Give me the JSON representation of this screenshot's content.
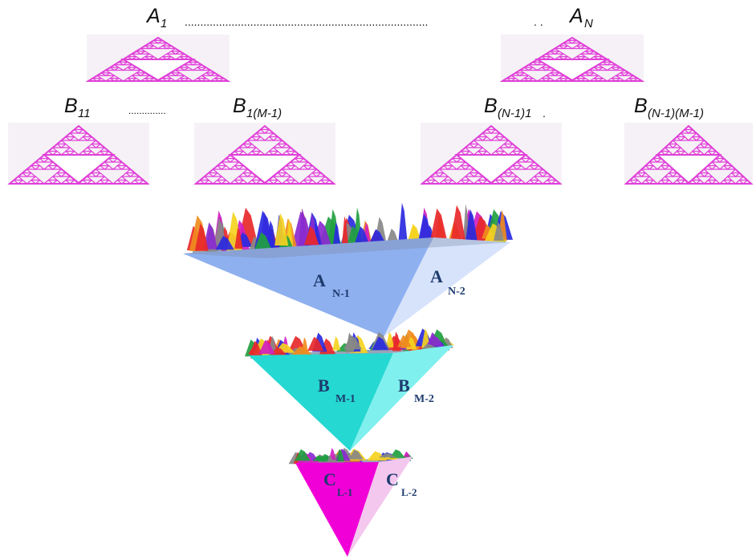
{
  "top_labels": {
    "first": {
      "main": "A",
      "sub": "1"
    },
    "last": {
      "main": "A",
      "sub": "N"
    },
    "dots_long": "..............................................................................",
    "dots_short": ". ."
  },
  "second_labels": [
    {
      "main": "B",
      "sub": "11"
    },
    {
      "main": "B",
      "sub": "1(M-1)"
    },
    {
      "main": "B",
      "sub": "(N-1)1"
    },
    {
      "main": "B",
      "sub": "(N-1)(M-1)"
    }
  ],
  "second_dots": "..............",
  "second_dot_after": ".",
  "pyramids": [
    {
      "left": {
        "main": "A",
        "sub": "N-1"
      },
      "right": {
        "main": "A",
        "sub": "N-2"
      },
      "left_color": "#8fb0ef",
      "right_color": "#d7e3fb"
    },
    {
      "left": {
        "main": "B",
        "sub": "M-1"
      },
      "right": {
        "main": "B",
        "sub": "M-2"
      },
      "left_color": "#25d8d2",
      "right_color": "#7ff0ee"
    },
    {
      "left": {
        "main": "C",
        "sub": "L-1"
      },
      "right": {
        "main": "C",
        "sub": "L-2"
      },
      "left_color": "#f000d6",
      "right_color": "#f4c7ef"
    }
  ],
  "colors": {
    "sierpinski": "#e040d8",
    "peaks": [
      "#e8282a",
      "#f08c1e",
      "#f5d220",
      "#2a2ae0",
      "#8a2ad0",
      "#20a040",
      "#d020c0",
      "#888888"
    ]
  }
}
